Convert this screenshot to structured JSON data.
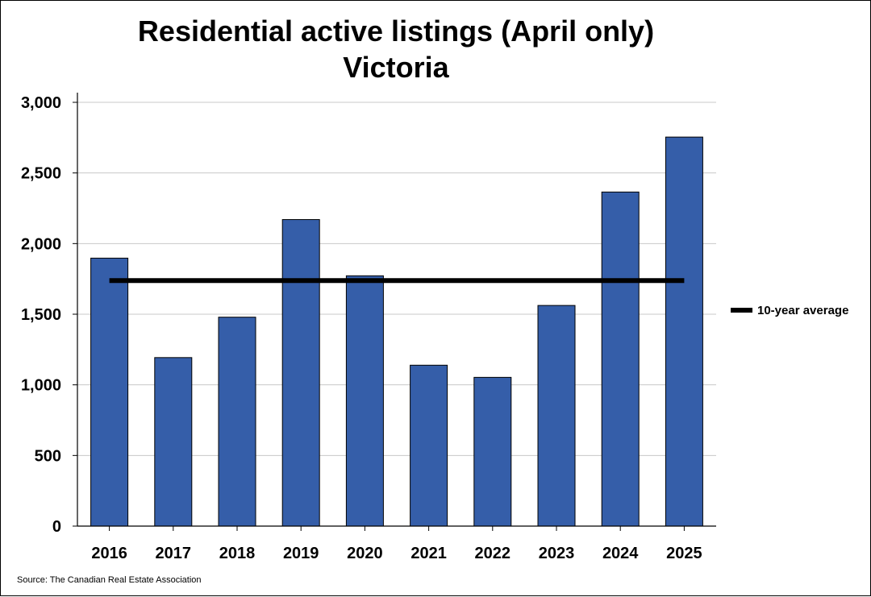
{
  "chart_data": {
    "type": "bar",
    "title": "Residential active listings (April only)",
    "subtitle": "Victoria",
    "categories": [
      "2016",
      "2017",
      "2018",
      "2019",
      "2020",
      "2021",
      "2022",
      "2023",
      "2024",
      "2025"
    ],
    "series": [
      {
        "values": [
          1897,
          1193,
          1479,
          2170,
          1772,
          1139,
          1053,
          1562,
          2365,
          2754
        ],
        "color": "#355EA9"
      }
    ],
    "reference_line": {
      "name": "10-year average",
      "value": 1738,
      "color": "#000000"
    },
    "y_ticks": [
      "0",
      "500",
      "1,000",
      "1,500",
      "2,000",
      "2,500",
      "3,000"
    ],
    "y_tick_values": [
      0,
      500,
      1000,
      1500,
      2000,
      2500,
      3000
    ],
    "ylim": [
      0,
      3000
    ],
    "xlabel": "",
    "ylabel": "",
    "grid": true,
    "legend_position": "right"
  },
  "source": "Source: The Canadian Real Estate Association"
}
